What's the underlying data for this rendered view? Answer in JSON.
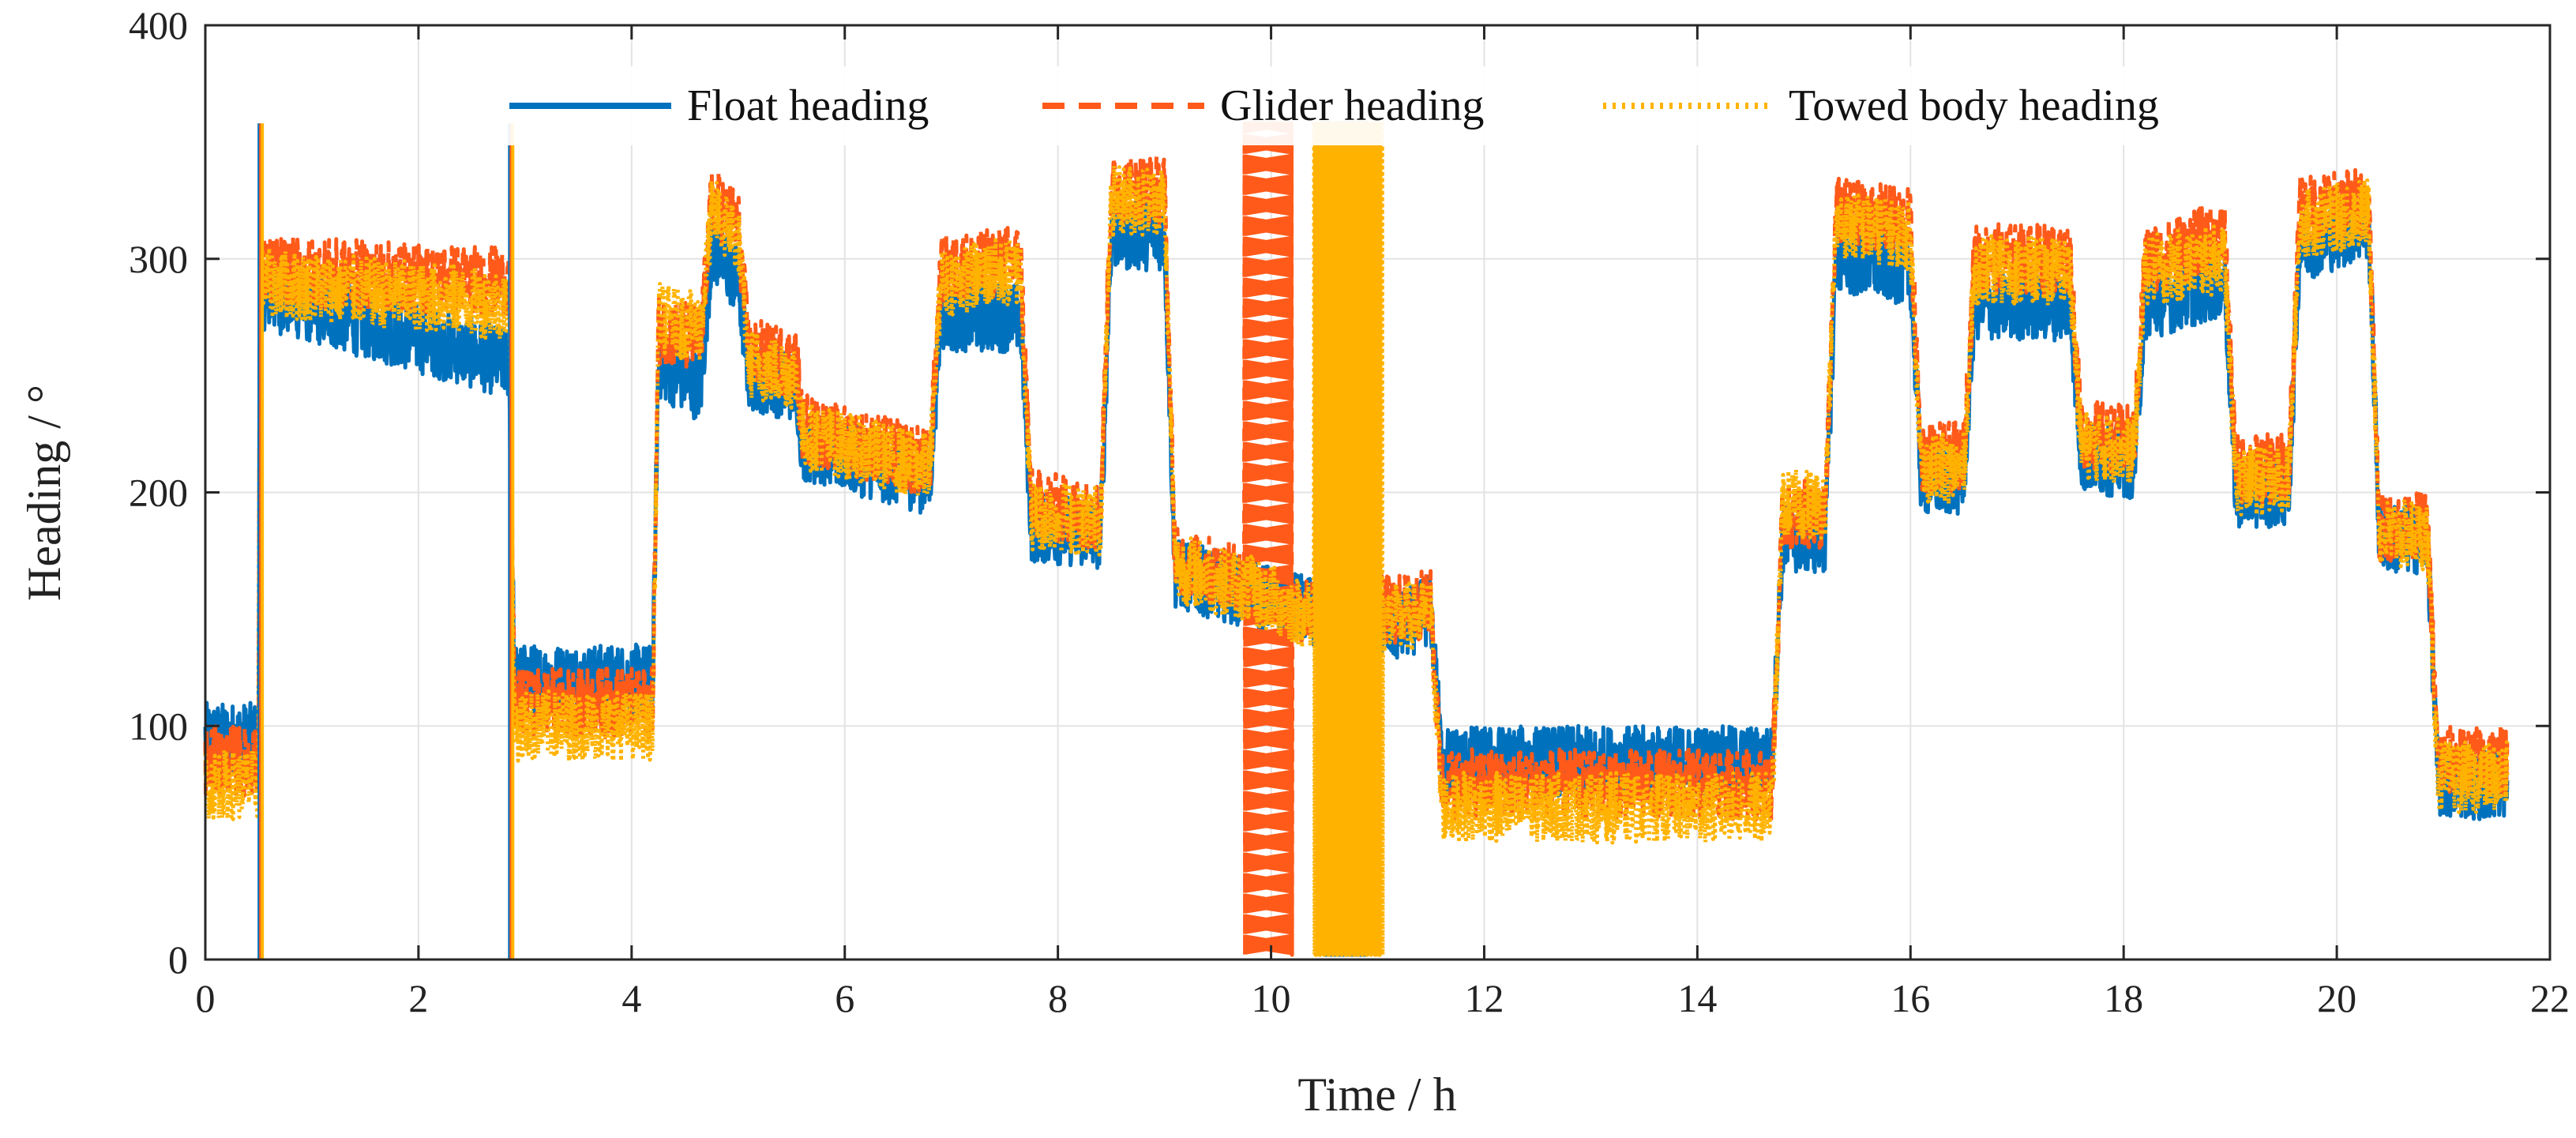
{
  "chart_data": {
    "type": "line",
    "title": "",
    "xlabel": "Time / h",
    "ylabel": "Heading / °",
    "xlim": [
      0,
      22
    ],
    "ylim": [
      0,
      400
    ],
    "xticks": [
      0,
      2,
      4,
      6,
      8,
      10,
      12,
      14,
      16,
      18,
      20,
      22
    ],
    "yticks": [
      0,
      100,
      200,
      300,
      400
    ],
    "grid": true,
    "legend_position": "top",
    "colors": {
      "float": "#0072bd",
      "glider": "#ff5a1a",
      "towed": "#ffb300",
      "frame": "#262626"
    },
    "series": [
      {
        "name": "Float heading",
        "style": "solid",
        "segments": [
          [
            0,
            95
          ],
          [
            0.5,
            95
          ],
          [
            0.51,
            285
          ],
          [
            2.85,
            255
          ],
          [
            2.9,
            120
          ],
          [
            4.2,
            120
          ],
          [
            4.25,
            255
          ],
          [
            4.65,
            245
          ],
          [
            4.75,
            305
          ],
          [
            5.0,
            290
          ],
          [
            5.1,
            250
          ],
          [
            5.55,
            245
          ],
          [
            5.6,
            220
          ],
          [
            6.8,
            205
          ],
          [
            6.9,
            275
          ],
          [
            7.65,
            275
          ],
          [
            7.75,
            185
          ],
          [
            8.4,
            182
          ],
          [
            8.5,
            310
          ],
          [
            9.0,
            310
          ],
          [
            9.1,
            165
          ],
          [
            9.7,
            158
          ],
          [
            10.3,
            150
          ],
          [
            10.6,
            145
          ],
          [
            11.2,
            142
          ],
          [
            11.5,
            150
          ],
          [
            11.6,
            85
          ],
          [
            14.7,
            85
          ],
          [
            14.8,
            180
          ],
          [
            15.2,
            180
          ],
          [
            15.3,
            300
          ],
          [
            16.0,
            295
          ],
          [
            16.1,
            205
          ],
          [
            16.5,
            205
          ],
          [
            16.6,
            280
          ],
          [
            17.5,
            280
          ],
          [
            17.6,
            215
          ],
          [
            18.1,
            212
          ],
          [
            18.2,
            280
          ],
          [
            18.95,
            290
          ],
          [
            19.05,
            200
          ],
          [
            19.55,
            200
          ],
          [
            19.65,
            305
          ],
          [
            20.3,
            315
          ],
          [
            20.4,
            180
          ],
          [
            20.85,
            180
          ],
          [
            20.95,
            75
          ],
          [
            21.6,
            75
          ]
        ],
        "oscillation_hours": [
          10.5,
          10.9
        ]
      },
      {
        "name": "Glider heading",
        "style": "dashed",
        "segments": [
          [
            0,
            85
          ],
          [
            0.5,
            85
          ],
          [
            0.51,
            295
          ],
          [
            2.85,
            290
          ],
          [
            2.9,
            110
          ],
          [
            4.2,
            110
          ],
          [
            4.25,
            270
          ],
          [
            4.65,
            265
          ],
          [
            4.75,
            325
          ],
          [
            5.0,
            315
          ],
          [
            5.1,
            260
          ],
          [
            5.55,
            255
          ],
          [
            5.6,
            228
          ],
          [
            6.8,
            212
          ],
          [
            6.9,
            295
          ],
          [
            7.65,
            300
          ],
          [
            7.75,
            195
          ],
          [
            8.4,
            190
          ],
          [
            8.5,
            330
          ],
          [
            9.0,
            330
          ],
          [
            9.1,
            170
          ],
          [
            9.7,
            163
          ],
          [
            10.3,
            150
          ],
          [
            10.6,
            148
          ],
          [
            11.2,
            150
          ],
          [
            11.5,
            152
          ],
          [
            11.6,
            75
          ],
          [
            14.7,
            75
          ],
          [
            14.8,
            190
          ],
          [
            15.2,
            190
          ],
          [
            15.3,
            320
          ],
          [
            16.0,
            315
          ],
          [
            16.1,
            215
          ],
          [
            16.5,
            215
          ],
          [
            16.6,
            300
          ],
          [
            17.5,
            300
          ],
          [
            17.6,
            225
          ],
          [
            18.1,
            222
          ],
          [
            18.2,
            300
          ],
          [
            18.95,
            310
          ],
          [
            19.05,
            210
          ],
          [
            19.55,
            210
          ],
          [
            19.65,
            320
          ],
          [
            20.3,
            325
          ],
          [
            20.4,
            185
          ],
          [
            20.85,
            185
          ],
          [
            20.95,
            85
          ],
          [
            21.6,
            85
          ]
        ],
        "oscillation_hours": [
          9.75,
          10.2
        ]
      },
      {
        "name": "Towed body heading",
        "style": "dotted",
        "segments": [
          [
            0,
            75
          ],
          [
            0.5,
            75
          ],
          [
            0.51,
            290
          ],
          [
            2.85,
            280
          ],
          [
            2.9,
            100
          ],
          [
            4.2,
            100
          ],
          [
            4.25,
            275
          ],
          [
            4.65,
            270
          ],
          [
            4.75,
            320
          ],
          [
            5.0,
            310
          ],
          [
            5.1,
            255
          ],
          [
            5.55,
            250
          ],
          [
            5.6,
            225
          ],
          [
            6.8,
            210
          ],
          [
            6.9,
            290
          ],
          [
            7.65,
            295
          ],
          [
            7.75,
            190
          ],
          [
            8.4,
            188
          ],
          [
            8.5,
            325
          ],
          [
            9.0,
            325
          ],
          [
            9.1,
            168
          ],
          [
            9.7,
            160
          ],
          [
            10.3,
            148
          ],
          [
            10.6,
            146
          ],
          [
            11.2,
            146
          ],
          [
            11.5,
            148
          ],
          [
            11.6,
            65
          ],
          [
            14.7,
            65
          ],
          [
            14.8,
            195
          ],
          [
            15.2,
            195
          ],
          [
            15.3,
            315
          ],
          [
            16.0,
            310
          ],
          [
            16.1,
            210
          ],
          [
            16.5,
            210
          ],
          [
            16.6,
            295
          ],
          [
            17.5,
            295
          ],
          [
            17.6,
            220
          ],
          [
            18.1,
            218
          ],
          [
            18.2,
            295
          ],
          [
            18.95,
            300
          ],
          [
            19.05,
            205
          ],
          [
            19.55,
            205
          ],
          [
            19.65,
            315
          ],
          [
            20.3,
            320
          ],
          [
            20.4,
            182
          ],
          [
            20.85,
            182
          ],
          [
            20.95,
            78
          ],
          [
            21.6,
            78
          ]
        ],
        "oscillation_hours": [
          10.4,
          11.05
        ]
      }
    ]
  }
}
